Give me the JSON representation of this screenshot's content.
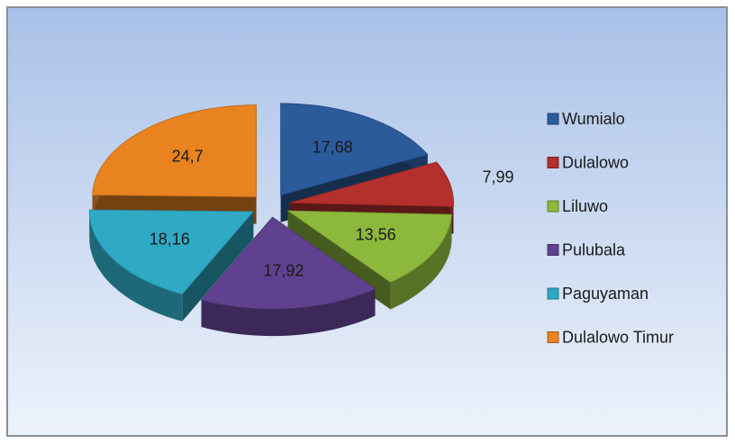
{
  "chart_data": {
    "type": "pie",
    "categories": [
      "Wumialo",
      "Dulalowo",
      "Liluwo",
      "Pulubala",
      "Paguyaman",
      "Dulalowo Timur"
    ],
    "values": [
      17.68,
      7.99,
      13.56,
      17.92,
      18.16,
      24.7
    ],
    "value_labels": [
      "17,68",
      "7,99",
      "13,56",
      "17,92",
      "18,16",
      "24,7"
    ],
    "colors": [
      "#2c5b9c",
      "#b3302c",
      "#8cb83c",
      "#60418f",
      "#2fa9c4",
      "#e8831f"
    ],
    "legend": "right"
  }
}
